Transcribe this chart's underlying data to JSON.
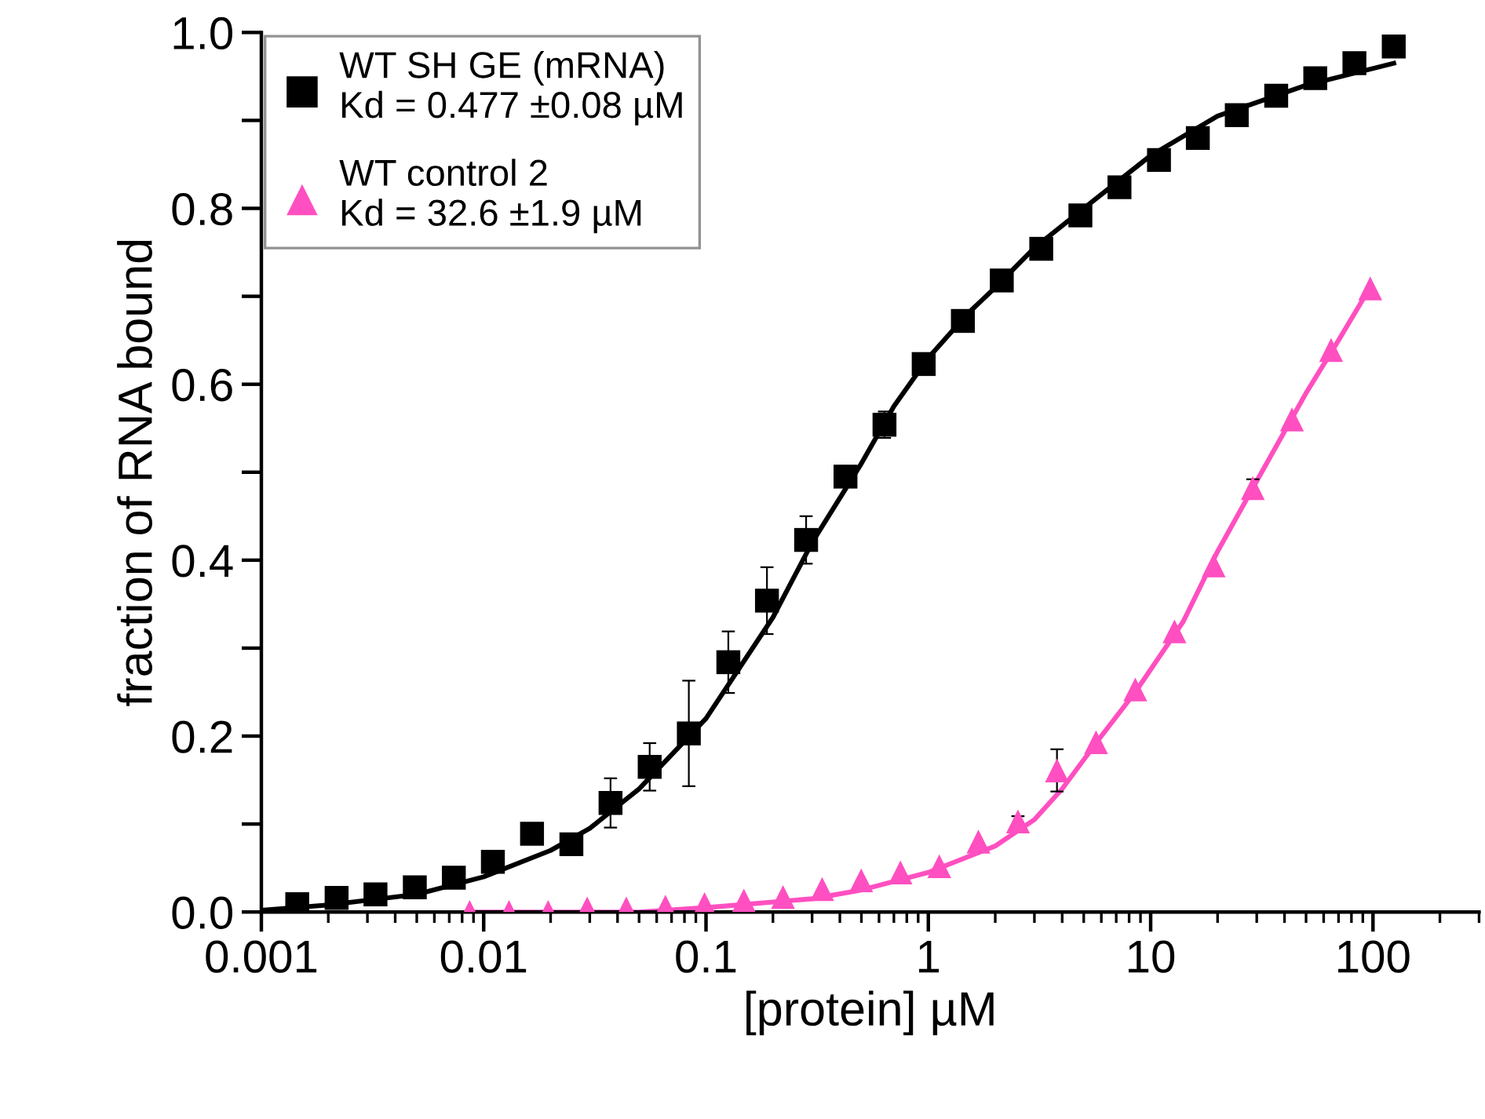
{
  "chart_data": {
    "type": "scatter",
    "xlabel": "[protein] µM",
    "ylabel": "fraction of RNA bound",
    "log": "x",
    "xlim": [
      0.001,
      300
    ],
    "xticks": [
      0.001,
      0.01,
      0.1,
      1,
      10,
      100
    ],
    "ylim": [
      0,
      1
    ],
    "yticks": [
      {
        "value": 0,
        "label": "0.0"
      },
      {
        "value": 0.1,
        "label": null
      },
      {
        "value": 0.2,
        "label": "0.2"
      },
      {
        "value": 0.3,
        "label": null
      },
      {
        "value": 0.4,
        "label": "0.4"
      },
      {
        "value": 0.5,
        "label": null
      },
      {
        "value": 0.6,
        "label": "0.6"
      },
      {
        "value": 0.7,
        "label": null
      },
      {
        "value": 0.8,
        "label": "0.8"
      },
      {
        "value": 0.9,
        "label": null
      },
      {
        "value": 1,
        "label": "1.0"
      }
    ],
    "legend": "top left",
    "grid": false,
    "series": [
      {
        "type": "line",
        "color": "#000000",
        "marker": "none",
        "line_style": "solid",
        "x": [
          0.001,
          0.002,
          0.005,
          0.01,
          0.02,
          0.03,
          0.05,
          0.1,
          0.2,
          0.3,
          0.5,
          0.7,
          1,
          1.5,
          2,
          3,
          5,
          10,
          20,
          50,
          124
        ],
        "values": [
          0.002,
          0.008,
          0.02,
          0.04,
          0.07,
          0.095,
          0.14,
          0.22,
          0.335,
          0.42,
          0.51,
          0.575,
          0.63,
          0.68,
          0.71,
          0.755,
          0.8,
          0.86,
          0.905,
          0.94,
          0.965
        ]
      },
      {
        "type": "line",
        "color": "#ff4fc0",
        "marker": "none",
        "line_style": "solid",
        "x": [
          0.0087,
          0.05,
          0.1,
          0.3,
          0.5,
          1,
          2,
          3,
          4,
          6,
          8.53,
          14,
          20,
          30,
          50,
          70,
          97
        ],
        "values": [
          0.0,
          0.0,
          0.005,
          0.015,
          0.025,
          0.045,
          0.075,
          0.105,
          0.14,
          0.2,
          0.25,
          0.33,
          0.41,
          0.49,
          0.59,
          0.65,
          0.71
        ]
      },
      {
        "name": "WT SH GE (mRNA)\nKd = 0.477 ±0.08 µM",
        "color": "#000000",
        "marker": "square",
        "x": [
          0.00145,
          0.00218,
          0.00326,
          0.0049,
          0.00734,
          0.011,
          0.0165,
          0.0248,
          0.0372,
          0.0558,
          0.0837,
          0.126,
          0.188,
          0.282,
          0.424,
          0.635,
          0.953,
          1.43,
          2.14,
          3.22,
          4.83,
          7.24,
          10.9,
          16.3,
          24.4,
          36.7,
          55.0,
          82.5,
          124
        ],
        "values": [
          0.009,
          0.016,
          0.02,
          0.028,
          0.039,
          0.057,
          0.089,
          0.077,
          0.124,
          0.165,
          0.203,
          0.284,
          0.354,
          0.423,
          0.495,
          0.554,
          0.623,
          0.672,
          0.718,
          0.754,
          0.792,
          0.824,
          0.855,
          0.88,
          0.906,
          0.928,
          0.948,
          0.965,
          0.984
        ],
        "errors": [
          null,
          null,
          null,
          null,
          null,
          null,
          null,
          null,
          0.028,
          0.027,
          0.06,
          0.035,
          0.038,
          0.027,
          0.012,
          0.015,
          0.01,
          null,
          null,
          null,
          null,
          null,
          null,
          null,
          null,
          null,
          null,
          null,
          null
        ]
      },
      {
        "name": "WT control 2\nKd = 32.6 ±1.9 µM",
        "color": "#ff4fc0",
        "marker": "triangle",
        "x": [
          0.00865,
          0.013,
          0.0195,
          0.0292,
          0.0438,
          0.0657,
          0.0985,
          0.148,
          0.222,
          0.333,
          0.499,
          0.749,
          1.12,
          1.68,
          2.53,
          3.79,
          5.68,
          8.53,
          12.8,
          19.2,
          28.8,
          43.2,
          64.8,
          97.2
        ],
        "values": [
          0.0,
          0.0,
          0.0,
          0.004,
          0.004,
          0.006,
          0.009,
          0.013,
          0.017,
          0.026,
          0.036,
          0.045,
          0.052,
          0.08,
          0.103,
          0.161,
          0.193,
          0.253,
          0.319,
          0.394,
          0.482,
          0.56,
          0.639,
          0.709
        ],
        "errors": [
          null,
          null,
          null,
          null,
          null,
          null,
          null,
          null,
          null,
          null,
          null,
          null,
          null,
          null,
          0.006,
          0.024,
          null,
          null,
          null,
          null,
          0.01,
          null,
          null,
          null
        ]
      }
    ]
  }
}
